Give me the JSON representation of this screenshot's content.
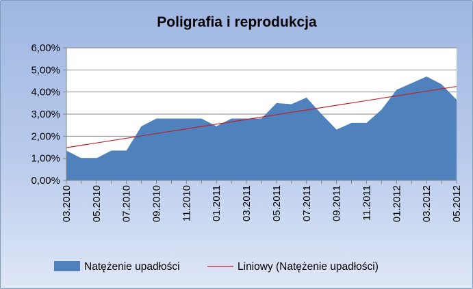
{
  "chart_data": {
    "type": "area",
    "title": "Poligrafia i reprodukcja",
    "ylim": [
      0,
      0.06
    ],
    "y_ticks": [
      "0,00%",
      "1,00%",
      "2,00%",
      "3,00%",
      "4,00%",
      "5,00%",
      "6,00%"
    ],
    "y_tick_values": [
      0,
      0.01,
      0.02,
      0.03,
      0.04,
      0.05,
      0.06
    ],
    "x_ticks": [
      "03.2010",
      "05.2010",
      "07.2010",
      "09.2010",
      "11.2010",
      "01.2011",
      "03.2011",
      "05.2011",
      "07.2011",
      "09.2011",
      "11.2011",
      "01.2012",
      "03.2012",
      "05.2012"
    ],
    "x": [
      "03.2010",
      "04.2010",
      "05.2010",
      "06.2010",
      "07.2010",
      "08.2010",
      "09.2010",
      "10.2010",
      "11.2010",
      "12.2010",
      "01.2011",
      "02.2011",
      "03.2011",
      "04.2011",
      "05.2011",
      "06.2011",
      "07.2011",
      "08.2011",
      "09.2011",
      "10.2011",
      "11.2011",
      "12.2011",
      "01.2012",
      "02.2012",
      "03.2012",
      "04.2012",
      "05.2012"
    ],
    "series": [
      {
        "name": "Natężenie upadłości",
        "color": "#4f81bd",
        "values": [
          0.0135,
          0.01,
          0.01,
          0.0135,
          0.0135,
          0.0245,
          0.028,
          0.028,
          0.028,
          0.028,
          0.0245,
          0.028,
          0.028,
          0.028,
          0.035,
          0.0345,
          0.0375,
          0.03,
          0.023,
          0.026,
          0.026,
          0.032,
          0.041,
          0.044,
          0.047,
          0.0435,
          0.0365
        ]
      }
    ],
    "trendline": {
      "name": "Liniowy (Natężenie upadłości)",
      "color": "#c0202a",
      "start": 0.0148,
      "end": 0.0425
    },
    "grid": true,
    "legend": "bottom"
  }
}
